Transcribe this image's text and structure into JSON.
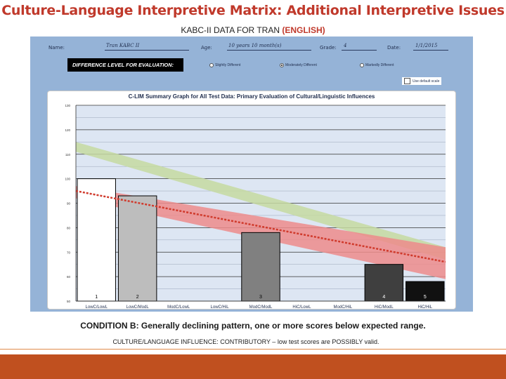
{
  "title": "Culture-Language Interpretive Matrix: Additional Interpretive Issues",
  "subtitle": {
    "prefix": "KABC-II DATA FOR TRAN ",
    "accent": "(ENGLISH)"
  },
  "form": {
    "name_label": "Name:",
    "name_value": "Tran  KABC II",
    "age_label": "Age:",
    "age_value": "10 years 10 month(s)",
    "grade_label": "Grade:",
    "grade_value": "4",
    "date_label": "Date:",
    "date_value": "1/1/2015",
    "difference_label": "DIFFERENCE LEVEL FOR EVALUATION:",
    "options": [
      {
        "label": "Slightly Different",
        "selected": false
      },
      {
        "label": "Moderately Different",
        "selected": true
      },
      {
        "label": "Markedly Different",
        "selected": false
      }
    ],
    "default_scale_label": "Use default scale"
  },
  "chart_data": {
    "type": "bar",
    "title": "C-LIM Summary Graph for All Test Data: Primary Evaluation of Cultural/Linguistic Influences",
    "categories": [
      "Low C/Low L",
      "Low C/Mod L",
      "Mod C/Low L",
      "Low C/Hi L",
      "Mod C/Mod L",
      "Hi C/Low L",
      "Mod C/Hi L",
      "Hi C/Mod L",
      "Hi C/Hi L"
    ],
    "tick_labels": [
      "LowC/LowL",
      "LowC/ModL",
      "ModC/LowL",
      "LowC/HiL",
      "ModC/ModL",
      "HiC/LowL",
      "ModC/HiL",
      "HiC/ModL",
      "HiC/HiL"
    ],
    "values": [
      100,
      93,
      null,
      null,
      78,
      null,
      null,
      65,
      58
    ],
    "bar_labels": [
      "1",
      "2",
      "",
      "",
      "3",
      "",
      "",
      "4",
      "5"
    ],
    "bar_colors": [
      "#ffffff",
      "#bdbdbd",
      null,
      null,
      "#808080",
      null,
      null,
      "#3f3f3f",
      "#111111"
    ],
    "ylim": [
      50,
      130
    ],
    "yticks": [
      50,
      55,
      60,
      65,
      70,
      75,
      80,
      85,
      90,
      95,
      100,
      105,
      110,
      115,
      120,
      125,
      130
    ],
    "yticks_major": [
      50,
      60,
      70,
      80,
      90,
      100,
      110,
      120,
      130
    ],
    "grid": true,
    "bands": [
      {
        "color": "#c6d9a0",
        "upper": [
          115,
          72
        ],
        "lower": [
          111,
          67
        ]
      },
      {
        "color": "#ed8b8b",
        "upper": [
          97,
          72
        ],
        "lower": [
          92,
          59
        ]
      }
    ],
    "trend": {
      "color": "#d03a2c",
      "values": [
        95,
        66
      ]
    }
  },
  "condition": "CONDITION B:  Generally declining pattern, one or more scores below expected range.",
  "influence": "CULTURE/LANGUAGE INFLUENCE: CONTRIBUTORY – low test scores are POSSIBLY valid."
}
